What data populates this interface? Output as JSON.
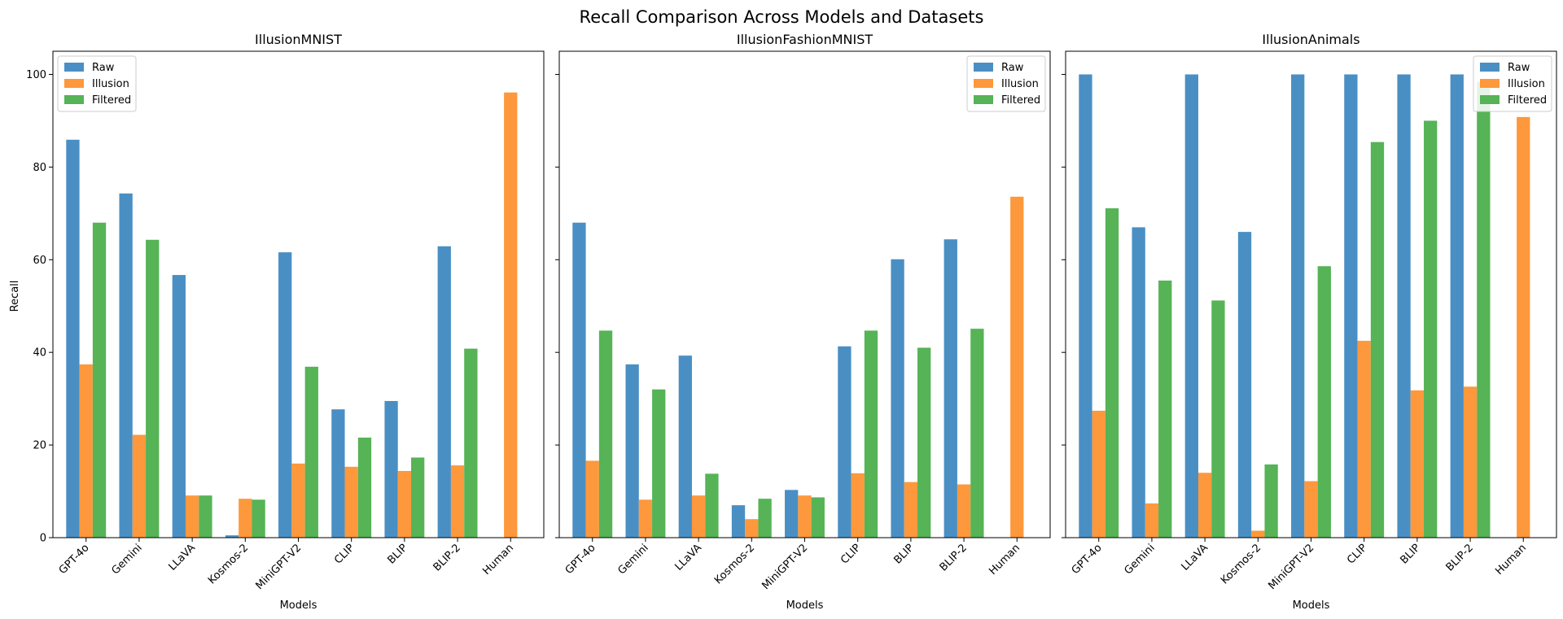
{
  "chart_data": {
    "title": "Recall Comparison Across Models and Datasets",
    "type": "bar",
    "ylabel": "Recall",
    "xlabel": "Models",
    "ylim": [
      0,
      105
    ],
    "yticks": [
      0,
      20,
      40,
      60,
      80,
      100
    ],
    "categories": [
      "GPT-4o",
      "Gemini",
      "LLaVA",
      "Kosmos-2",
      "MiniGPT-V2",
      "CLIP",
      "BLIP",
      "BLIP-2",
      "Human"
    ],
    "colors": {
      "Raw": "#4a8fc4",
      "Illusion": "#fe983c",
      "Filtered": "#56b356"
    },
    "panels": [
      {
        "title": "IllusionMNIST",
        "legend_position": "upper-left",
        "series": [
          {
            "name": "Raw",
            "values": [
              85.9,
              74.3,
              56.7,
              0.5,
              61.6,
              27.7,
              29.5,
              62.9,
              null
            ]
          },
          {
            "name": "Illusion",
            "values": [
              37.4,
              22.2,
              9.1,
              8.4,
              16.0,
              15.3,
              14.4,
              15.6,
              96.1
            ]
          },
          {
            "name": "Filtered",
            "values": [
              68.0,
              64.3,
              9.1,
              8.2,
              36.9,
              21.6,
              17.3,
              40.8,
              null
            ]
          }
        ]
      },
      {
        "title": "IllusionFashionMNIST",
        "legend_position": "upper-right",
        "series": [
          {
            "name": "Raw",
            "values": [
              68.0,
              37.4,
              39.3,
              7.0,
              10.3,
              41.3,
              60.1,
              64.4,
              null
            ]
          },
          {
            "name": "Illusion",
            "values": [
              16.6,
              8.2,
              9.1,
              4.0,
              9.1,
              13.9,
              12.0,
              11.5,
              73.6
            ]
          },
          {
            "name": "Filtered",
            "values": [
              44.7,
              32.0,
              13.8,
              8.4,
              8.7,
              44.7,
              41.0,
              45.1,
              null
            ]
          }
        ]
      },
      {
        "title": "IllusionAnimals",
        "legend_position": "upper-right",
        "series": [
          {
            "name": "Raw",
            "values": [
              100,
              67.0,
              100,
              66.0,
              100,
              100,
              100,
              100,
              null
            ]
          },
          {
            "name": "Illusion",
            "values": [
              27.4,
              7.4,
              14.0,
              1.5,
              12.2,
              42.5,
              31.8,
              32.6,
              90.8
            ]
          },
          {
            "name": "Filtered",
            "values": [
              71.1,
              55.5,
              51.2,
              15.8,
              58.6,
              85.4,
              90.0,
              98.4,
              null
            ]
          }
        ]
      }
    ]
  }
}
